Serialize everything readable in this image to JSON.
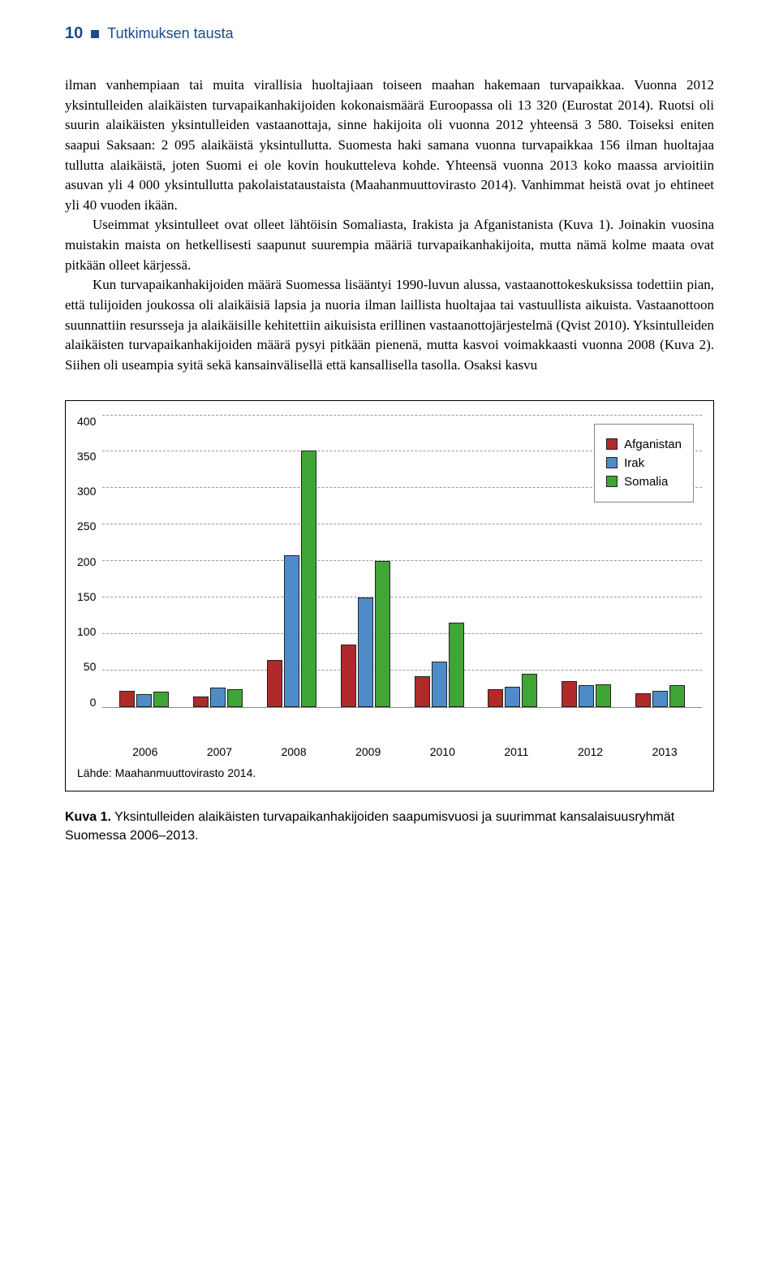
{
  "header": {
    "page_number": "10",
    "title": "Tutkimuksen tausta"
  },
  "paragraphs": {
    "p1": "ilman vanhempiaan tai muita virallisia huoltajiaan toiseen maahan hakemaan turvapaikkaa. Vuonna 2012 yksintulleiden alaikäisten turvapaikanhakijoiden kokonaismäärä Euroopassa oli 13 320 (Eurostat 2014). Ruotsi oli suurin alaikäisten yksintulleiden vastaanottaja, sinne hakijoita oli vuonna 2012 yhteensä 3 580. Toiseksi eniten saapui Saksaan: 2 095 alaikäistä yksintullutta. Suomesta haki samana vuonna turvapaikkaa 156 ilman huoltajaa tullutta alaikäistä, joten Suomi ei ole kovin houkutteleva kohde. Yhteensä vuonna 2013 koko maassa arvioitiin asuvan yli 4 000 yksintullutta pakolaistataustaista (Maahanmuuttovirasto 2014). Vanhimmat heistä ovat jo ehtineet yli 40 vuoden ikään.",
    "p2": "Useimmat yksintulleet ovat olleet lähtöisin Somaliasta, Irakista ja Afganistanista (Kuva 1). Joinakin vuosina muistakin maista on hetkellisesti saapunut suurempia määriä turvapaikanhakijoita, mutta nämä kolme maata ovat pitkään olleet kärjessä.",
    "p3": "Kun turvapaikanhakijoiden määrä Suomessa lisääntyi 1990-luvun alussa, vastaanottokeskuksissa todettiin pian, että tulijoiden joukossa oli alaikäisiä lapsia ja nuoria ilman laillista huoltajaa tai vastuullista aikuista. Vastaanottoon suunnattiin resursseja ja alaikäisille kehitettiin aikuisista erillinen vastaanottojärjestelmä (Qvist 2010). Yksintulleiden alaikäisten turvapaikanhakijoiden määrä pysyi pitkään pienenä, mutta kasvoi voimakkaasti vuonna 2008 (Kuva 2). Siihen oli useampia syitä sekä kansainvälisellä että kansallisella tasolla. Osaksi kasvu"
  },
  "chart": {
    "type": "bar",
    "ylim": [
      0,
      400
    ],
    "ytick_step": 50,
    "y_ticks": [
      "400",
      "350",
      "300",
      "250",
      "200",
      "150",
      "100",
      "50",
      "0"
    ],
    "categories": [
      "2006",
      "2007",
      "2008",
      "2009",
      "2010",
      "2011",
      "2012",
      "2013"
    ],
    "series": [
      {
        "name": "Afganistan",
        "color": "#b02a2a",
        "values": [
          22,
          14,
          64,
          85,
          42,
          24,
          35,
          18
        ]
      },
      {
        "name": "Irak",
        "color": "#4f8bc9",
        "values": [
          17,
          26,
          208,
          150,
          62,
          27,
          30,
          22
        ]
      },
      {
        "name": "Somalia",
        "color": "#3fa535",
        "values": [
          21,
          24,
          352,
          200,
          116,
          45,
          31,
          30
        ]
      }
    ],
    "background_color": "#ffffff",
    "grid_color": "#999999",
    "bar_border": "#222222",
    "source": "Lähde: Maahanmuuttovirasto 2014.",
    "legend_labels": {
      "afganistan": "Afganistan",
      "irak": "Irak",
      "somalia": "Somalia"
    }
  },
  "caption": {
    "label": "Kuva 1.",
    "text": " Yksintulleiden alaikäisten turvapaikanhakijoiden saapumisvuosi ja suurimmat kansalaisuusryhmät Suomessa 2006–2013."
  }
}
